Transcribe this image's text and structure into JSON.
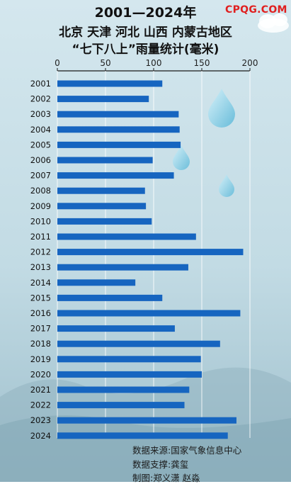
{
  "title_lines": [
    "2001—2024年",
    "北京 天津 河北 山西 内蒙古地区",
    "“七下八上”雨量统计(毫米)"
  ],
  "logo": "CPQG.COM",
  "colors": {
    "bar": "#1665c0",
    "logo": "#e02020",
    "background_top": "#cfe3ea",
    "background_bottom": "#8fb3c2"
  },
  "icons": [
    "raindrop-icon",
    "cloud-icon"
  ],
  "chart_data": {
    "type": "bar",
    "orientation": "horizontal",
    "title": "“七下八上”雨量统计(毫米)",
    "xlim": [
      0,
      200
    ],
    "xticks": [
      "0",
      "50",
      "100",
      "150",
      "200"
    ],
    "grid": true,
    "categories": [
      "2001",
      "2002",
      "2003",
      "2004",
      "2005",
      "2006",
      "2007",
      "2008",
      "2009",
      "2010",
      "2011",
      "2012",
      "2013",
      "2014",
      "2015",
      "2016",
      "2017",
      "2018",
      "2019",
      "2020",
      "2021",
      "2022",
      "2023",
      "2024"
    ],
    "values": [
      109,
      95,
      126,
      127,
      128,
      99,
      121,
      91,
      92,
      98,
      144,
      193,
      136,
      81,
      109,
      190,
      122,
      169,
      149,
      150,
      137,
      132,
      186,
      177
    ]
  },
  "footer": {
    "source": "数据来源:国家气象信息中心",
    "support": "数据支撑:龚玺",
    "credits": "制图:郑义潇 赵淼"
  }
}
